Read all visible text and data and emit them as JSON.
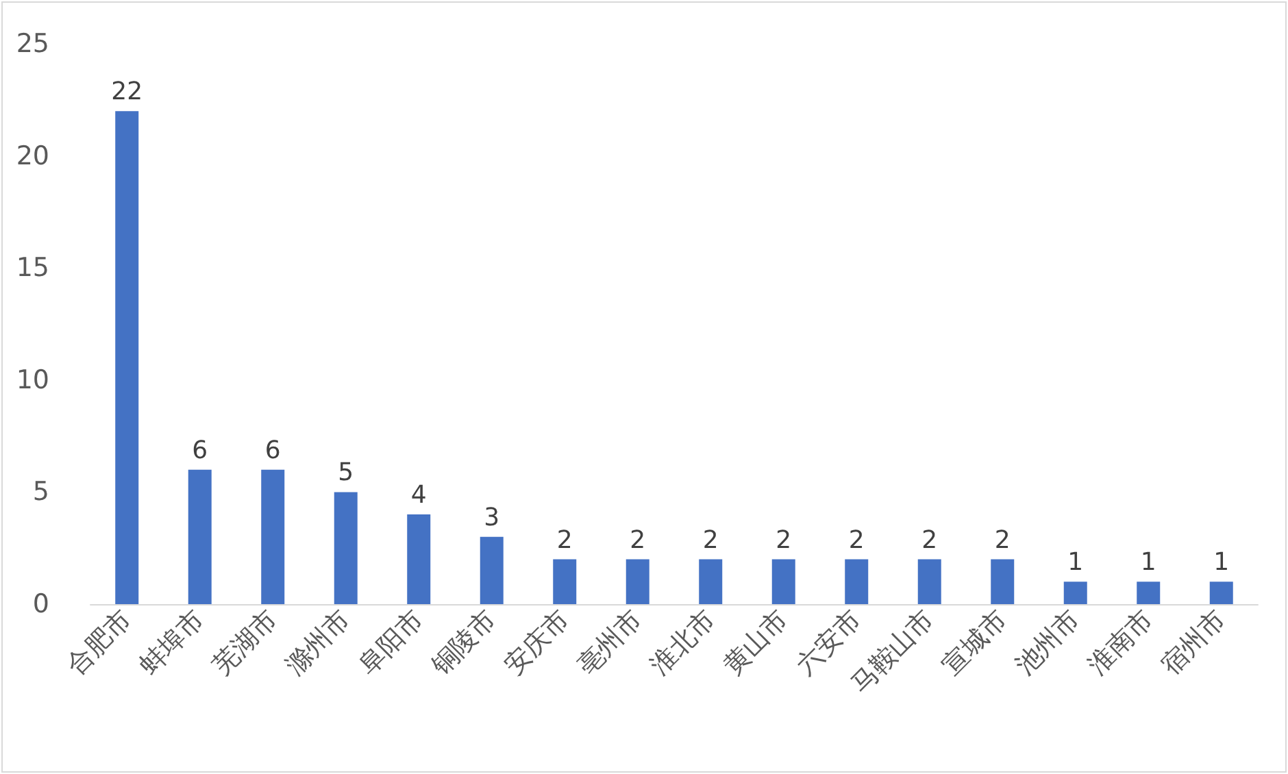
{
  "chart_data": {
    "type": "bar",
    "categories": [
      "合肥市",
      "蚌埠市",
      "芜湖市",
      "滁州市",
      "阜阳市",
      "铜陵市",
      "安庆市",
      "亳州市",
      "淮北市",
      "黄山市",
      "六安市",
      "马鞍山市",
      "宣城市",
      "池州市",
      "淮南市",
      "宿州市"
    ],
    "values": [
      22,
      6,
      6,
      5,
      4,
      3,
      2,
      2,
      2,
      2,
      2,
      2,
      2,
      1,
      1,
      1
    ],
    "color": "#4472c4",
    "ylim": [
      0,
      25
    ],
    "yticks": [
      0,
      5,
      10,
      15,
      20,
      25
    ],
    "grid": false,
    "data_labels": true
  }
}
